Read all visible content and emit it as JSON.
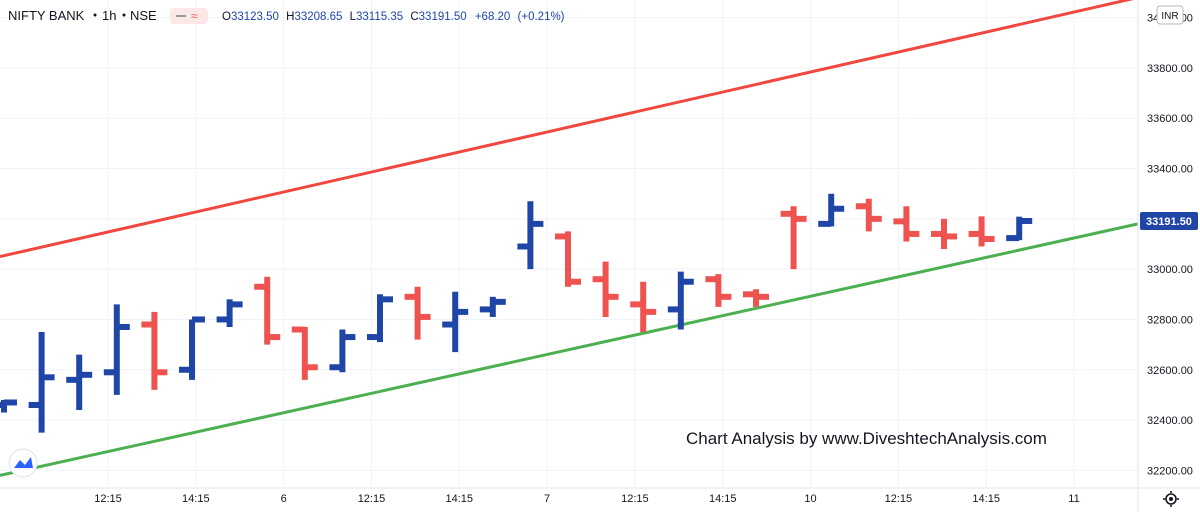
{
  "header": {
    "symbol": "NIFTY BANK",
    "interval": "1h",
    "exchange": "NSE",
    "open_label": "O",
    "open": "33123.50",
    "high_label": "H",
    "high": "33208.65",
    "low_label": "L",
    "low": "33115.35",
    "close_label": "C",
    "close": "33191.50",
    "change": "+68.20",
    "change_pct": "(+0.21%)",
    "currency": "INR"
  },
  "watermark": "Chart Analysis by www.DiveshtechAnalysis.com",
  "colors": {
    "up": "#1f46a6",
    "down": "#ef5350",
    "resistance": "#f0473f",
    "support": "#4caf50",
    "grid": "#f0f3fa",
    "ohlc_values": "#1f46a6",
    "price_tag_bg": "#1f46a6"
  },
  "chart_data": {
    "type": "ohlc",
    "title": "NIFTY BANK · 1h · NSE",
    "y_ticks": [
      "34000.00",
      "33800.00",
      "33600.00",
      "33400.00",
      "33200.00",
      "33000.00",
      "32800.00",
      "32600.00",
      "32400.00",
      "32200.00"
    ],
    "x_ticks": [
      "12:15",
      "14:15",
      "6",
      "12:15",
      "14:15",
      "7",
      "12:15",
      "14:15",
      "10",
      "12:15",
      "14:15",
      "11"
    ],
    "last_price": "33191.50",
    "ylim": [
      32130,
      34070
    ],
    "grid": true,
    "bars": [
      {
        "o": 32460,
        "h": 32480,
        "l": 32430,
        "c": 32470
      },
      {
        "o": 32460,
        "h": 32750,
        "l": 32350,
        "c": 32570
      },
      {
        "o": 32560,
        "h": 32660,
        "l": 32440,
        "c": 32580
      },
      {
        "o": 32590,
        "h": 32860,
        "l": 32500,
        "c": 32770
      },
      {
        "o": 32780,
        "h": 32830,
        "l": 32520,
        "c": 32590
      },
      {
        "o": 32600,
        "h": 32800,
        "l": 32560,
        "c": 32800
      },
      {
        "o": 32800,
        "h": 32880,
        "l": 32770,
        "c": 32860
      },
      {
        "o": 32930,
        "h": 32970,
        "l": 32700,
        "c": 32730
      },
      {
        "o": 32760,
        "h": 32770,
        "l": 32560,
        "c": 32610
      },
      {
        "o": 32610,
        "h": 32760,
        "l": 32590,
        "c": 32730
      },
      {
        "o": 32730,
        "h": 32900,
        "l": 32710,
        "c": 32880
      },
      {
        "o": 32890,
        "h": 32930,
        "l": 32720,
        "c": 32810
      },
      {
        "o": 32780,
        "h": 32910,
        "l": 32670,
        "c": 32830
      },
      {
        "o": 32840,
        "h": 32890,
        "l": 32810,
        "c": 32870
      },
      {
        "o": 33090,
        "h": 33270,
        "l": 33000,
        "c": 33180
      },
      {
        "o": 33130,
        "h": 33150,
        "l": 32930,
        "c": 32950
      },
      {
        "o": 32960,
        "h": 33030,
        "l": 32810,
        "c": 32890
      },
      {
        "o": 32860,
        "h": 32950,
        "l": 32750,
        "c": 32830
      },
      {
        "o": 32840,
        "h": 32990,
        "l": 32760,
        "c": 32950
      },
      {
        "o": 32960,
        "h": 32980,
        "l": 32850,
        "c": 32890
      },
      {
        "o": 32900,
        "h": 32920,
        "l": 32850,
        "c": 32890
      },
      {
        "o": 33220,
        "h": 33250,
        "l": 33000,
        "c": 33200
      },
      {
        "o": 33180,
        "h": 33300,
        "l": 33170,
        "c": 33240
      },
      {
        "o": 33250,
        "h": 33280,
        "l": 33150,
        "c": 33200
      },
      {
        "o": 33190,
        "h": 33250,
        "l": 33110,
        "c": 33140
      },
      {
        "o": 33140,
        "h": 33200,
        "l": 33080,
        "c": 33130
      },
      {
        "o": 33140,
        "h": 33210,
        "l": 33090,
        "c": 33120
      },
      {
        "o": 33123.5,
        "h": 33208.65,
        "l": 33115.35,
        "c": 33191.5
      }
    ],
    "trendlines": [
      {
        "name": "resistance",
        "start": [
          0,
          33050
        ],
        "end": [
          1,
          34080
        ]
      },
      {
        "name": "support",
        "start": [
          0,
          32180
        ],
        "end": [
          1,
          33180
        ]
      }
    ]
  }
}
